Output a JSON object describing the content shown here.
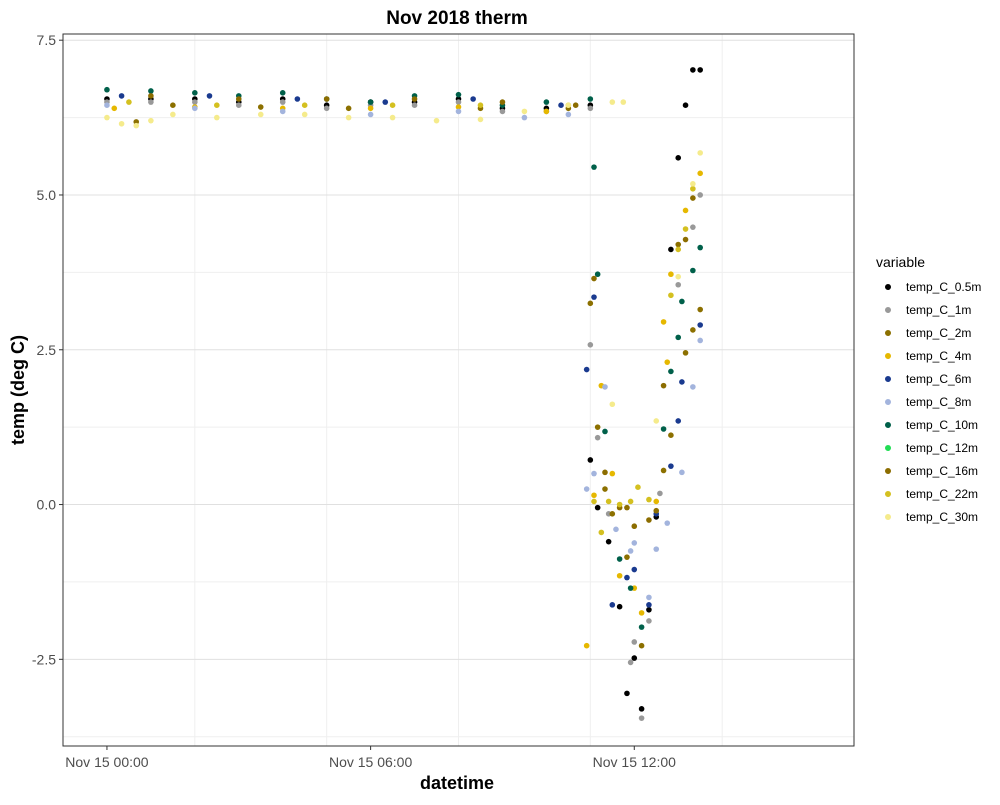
{
  "chart_data": {
    "type": "scatter",
    "title": "Nov 2018 therm",
    "xlabel": "datetime",
    "ylabel": "temp (deg C)",
    "legend_title": "variable",
    "legend_position": "right",
    "grid": true,
    "x_unit": "datetime",
    "xlim": [
      "2018-11-14 23:00",
      "2018-11-15 17:00"
    ],
    "ylim": [
      -3.9,
      7.6
    ],
    "x_ticks": [
      {
        "t": "2018-11-15 00:00",
        "label": "Nov 15 00:00"
      },
      {
        "t": "2018-11-15 06:00",
        "label": "Nov 15 06:00"
      },
      {
        "t": "2018-11-15 12:00",
        "label": "Nov 15 12:00"
      }
    ],
    "y_ticks": [
      {
        "v": -2.5,
        "label": "-2.5"
      },
      {
        "v": 0.0,
        "label": "0.0"
      },
      {
        "v": 2.5,
        "label": "2.5"
      },
      {
        "v": 5.0,
        "label": "5.0"
      },
      {
        "v": 7.5,
        "label": "7.5"
      }
    ],
    "series": [
      {
        "name": "temp_C_0.5m",
        "color": "#000000",
        "points": [
          [
            "2018-11-15 00:00",
            6.55
          ],
          [
            "2018-11-15 01:00",
            6.55
          ],
          [
            "2018-11-15 02:00",
            6.55
          ],
          [
            "2018-11-15 03:00",
            6.5
          ],
          [
            "2018-11-15 04:00",
            6.55
          ],
          [
            "2018-11-15 05:00",
            6.45
          ],
          [
            "2018-11-15 06:00",
            6.5
          ],
          [
            "2018-11-15 07:00",
            6.5
          ],
          [
            "2018-11-15 08:00",
            6.55
          ],
          [
            "2018-11-15 09:00",
            6.4
          ],
          [
            "2018-11-15 10:00",
            6.4
          ],
          [
            "2018-11-15 11:00",
            6.45
          ],
          [
            "2018-11-15 11:00",
            0.72
          ],
          [
            "2018-11-15 11:10",
            -0.05
          ],
          [
            "2018-11-15 11:25",
            -0.6
          ],
          [
            "2018-11-15 11:40",
            -1.65
          ],
          [
            "2018-11-15 11:50",
            -3.05
          ],
          [
            "2018-11-15 12:00",
            -2.48
          ],
          [
            "2018-11-15 12:10",
            -3.3
          ],
          [
            "2018-11-15 12:20",
            -1.7
          ],
          [
            "2018-11-15 12:30",
            -0.2
          ],
          [
            "2018-11-15 12:50",
            4.12
          ],
          [
            "2018-11-15 13:00",
            5.6
          ],
          [
            "2018-11-15 13:10",
            6.45
          ],
          [
            "2018-11-15 13:20",
            7.02
          ],
          [
            "2018-11-15 13:30",
            7.02
          ]
        ]
      },
      {
        "name": "temp_C_1m",
        "color": "#999999",
        "points": [
          [
            "2018-11-15 00:00",
            6.5
          ],
          [
            "2018-11-15 01:00",
            6.5
          ],
          [
            "2018-11-15 02:00",
            6.5
          ],
          [
            "2018-11-15 03:00",
            6.45
          ],
          [
            "2018-11-15 04:00",
            6.5
          ],
          [
            "2018-11-15 05:00",
            6.4
          ],
          [
            "2018-11-15 06:00",
            6.45
          ],
          [
            "2018-11-15 07:00",
            6.45
          ],
          [
            "2018-11-15 08:00",
            6.5
          ],
          [
            "2018-11-15 09:00",
            6.35
          ],
          [
            "2018-11-15 10:00",
            6.35
          ],
          [
            "2018-11-15 11:00",
            6.4
          ],
          [
            "2018-11-15 11:00",
            2.58
          ],
          [
            "2018-11-15 11:10",
            1.08
          ],
          [
            "2018-11-15 11:25",
            -0.15
          ],
          [
            "2018-11-15 11:55",
            -2.55
          ],
          [
            "2018-11-15 12:00",
            -2.22
          ],
          [
            "2018-11-15 12:10",
            -3.45
          ],
          [
            "2018-11-15 12:20",
            -1.88
          ],
          [
            "2018-11-15 12:35",
            0.18
          ],
          [
            "2018-11-15 13:00",
            3.55
          ],
          [
            "2018-11-15 13:20",
            4.48
          ],
          [
            "2018-11-15 13:30",
            5.0
          ]
        ]
      },
      {
        "name": "temp_C_2m",
        "color": "#8c7000",
        "points": [
          [
            "2018-11-15 00:40",
            6.18
          ],
          [
            "2018-11-15 01:30",
            6.45
          ],
          [
            "2018-11-15 03:30",
            6.42
          ],
          [
            "2018-11-15 05:30",
            6.4
          ],
          [
            "2018-11-15 08:30",
            6.4
          ],
          [
            "2018-11-15 10:30",
            6.4
          ],
          [
            "2018-11-15 11:00",
            3.25
          ],
          [
            "2018-11-15 11:10",
            1.25
          ],
          [
            "2018-11-15 11:20",
            0.25
          ],
          [
            "2018-11-15 11:30",
            -0.15
          ],
          [
            "2018-11-15 11:50",
            -0.85
          ],
          [
            "2018-11-15 12:10",
            -2.28
          ],
          [
            "2018-11-15 12:40",
            0.55
          ],
          [
            "2018-11-15 12:50",
            1.12
          ],
          [
            "2018-11-15 13:00",
            4.2
          ],
          [
            "2018-11-15 13:10",
            2.45
          ],
          [
            "2018-11-15 13:20",
            2.82
          ],
          [
            "2018-11-15 13:30",
            3.15
          ]
        ]
      },
      {
        "name": "temp_C_4m",
        "color": "#e6b800",
        "points": [
          [
            "2018-11-15 00:10",
            6.4
          ],
          [
            "2018-11-15 02:00",
            6.42
          ],
          [
            "2018-11-15 04:00",
            6.4
          ],
          [
            "2018-11-15 06:00",
            6.4
          ],
          [
            "2018-11-15 08:00",
            6.42
          ],
          [
            "2018-11-15 10:00",
            6.35
          ],
          [
            "2018-11-15 10:55",
            -2.28
          ],
          [
            "2018-11-15 11:05",
            0.15
          ],
          [
            "2018-11-15 11:15",
            1.92
          ],
          [
            "2018-11-15 11:30",
            0.5
          ],
          [
            "2018-11-15 11:40",
            -1.15
          ],
          [
            "2018-11-15 12:00",
            -1.35
          ],
          [
            "2018-11-15 12:10",
            -1.75
          ],
          [
            "2018-11-15 12:30",
            0.05
          ],
          [
            "2018-11-15 12:40",
            2.95
          ],
          [
            "2018-11-15 12:45",
            2.3
          ],
          [
            "2018-11-15 12:50",
            3.72
          ],
          [
            "2018-11-15 13:10",
            4.75
          ],
          [
            "2018-11-15 13:30",
            5.35
          ]
        ]
      },
      {
        "name": "temp_C_6m",
        "color": "#1a3a8f",
        "points": [
          [
            "2018-11-15 00:20",
            6.6
          ],
          [
            "2018-11-15 02:20",
            6.6
          ],
          [
            "2018-11-15 04:20",
            6.55
          ],
          [
            "2018-11-15 06:20",
            6.5
          ],
          [
            "2018-11-15 08:20",
            6.55
          ],
          [
            "2018-11-15 10:20",
            6.45
          ],
          [
            "2018-11-15 10:55",
            2.18
          ],
          [
            "2018-11-15 11:05",
            3.35
          ],
          [
            "2018-11-15 11:30",
            -1.62
          ],
          [
            "2018-11-15 11:50",
            -1.18
          ],
          [
            "2018-11-15 12:00",
            -1.05
          ],
          [
            "2018-11-15 12:20",
            -1.62
          ],
          [
            "2018-11-15 12:30",
            -0.15
          ],
          [
            "2018-11-15 12:50",
            0.62
          ],
          [
            "2018-11-15 13:00",
            1.35
          ],
          [
            "2018-11-15 13:05",
            1.98
          ],
          [
            "2018-11-15 13:30",
            2.9
          ]
        ]
      },
      {
        "name": "temp_C_8m",
        "color": "#a3b4dd",
        "points": [
          [
            "2018-11-15 00:00",
            6.45
          ],
          [
            "2018-11-15 02:00",
            6.4
          ],
          [
            "2018-11-15 04:00",
            6.35
          ],
          [
            "2018-11-15 06:00",
            6.3
          ],
          [
            "2018-11-15 08:00",
            6.35
          ],
          [
            "2018-11-15 09:30",
            6.25
          ],
          [
            "2018-11-15 10:30",
            6.3
          ],
          [
            "2018-11-15 10:55",
            0.25
          ],
          [
            "2018-11-15 11:05",
            0.5
          ],
          [
            "2018-11-15 11:20",
            1.9
          ],
          [
            "2018-11-15 11:35",
            -0.4
          ],
          [
            "2018-11-15 11:55",
            -0.75
          ],
          [
            "2018-11-15 12:00",
            -0.62
          ],
          [
            "2018-11-15 12:20",
            -1.5
          ],
          [
            "2018-11-15 12:30",
            -0.72
          ],
          [
            "2018-11-15 12:45",
            -0.3
          ],
          [
            "2018-11-15 13:05",
            0.52
          ],
          [
            "2018-11-15 13:20",
            1.9
          ],
          [
            "2018-11-15 13:30",
            2.65
          ]
        ]
      },
      {
        "name": "temp_C_10m",
        "color": "#00604a",
        "points": [
          [
            "2018-11-15 00:00",
            6.7
          ],
          [
            "2018-11-15 01:00",
            6.68
          ],
          [
            "2018-11-15 02:00",
            6.65
          ],
          [
            "2018-11-15 03:00",
            6.6
          ],
          [
            "2018-11-15 04:00",
            6.65
          ],
          [
            "2018-11-15 05:00",
            6.55
          ],
          [
            "2018-11-15 06:00",
            6.5
          ],
          [
            "2018-11-15 07:00",
            6.6
          ],
          [
            "2018-11-15 08:00",
            6.62
          ],
          [
            "2018-11-15 09:00",
            6.45
          ],
          [
            "2018-11-15 10:00",
            6.5
          ],
          [
            "2018-11-15 11:00",
            6.55
          ],
          [
            "2018-11-15 11:05",
            5.45
          ],
          [
            "2018-11-15 11:10",
            3.72
          ],
          [
            "2018-11-15 11:20",
            1.18
          ],
          [
            "2018-11-15 11:40",
            -0.88
          ],
          [
            "2018-11-15 11:55",
            -1.35
          ],
          [
            "2018-11-15 12:10",
            -1.98
          ],
          [
            "2018-11-15 12:40",
            1.22
          ],
          [
            "2018-11-15 12:50",
            2.15
          ],
          [
            "2018-11-15 13:00",
            2.7
          ],
          [
            "2018-11-15 13:05",
            3.28
          ],
          [
            "2018-11-15 13:20",
            3.78
          ],
          [
            "2018-11-15 13:30",
            4.15
          ]
        ]
      },
      {
        "name": "temp_C_12m",
        "color": "#22dd55",
        "points": []
      },
      {
        "name": "temp_C_16m",
        "color": "#8c6d00",
        "points": [
          [
            "2018-11-15 01:00",
            6.6
          ],
          [
            "2018-11-15 03:00",
            6.55
          ],
          [
            "2018-11-15 05:00",
            6.55
          ],
          [
            "2018-11-15 07:00",
            6.55
          ],
          [
            "2018-11-15 09:00",
            6.5
          ],
          [
            "2018-11-15 10:40",
            6.45
          ],
          [
            "2018-11-15 11:05",
            3.65
          ],
          [
            "2018-11-15 11:20",
            0.52
          ],
          [
            "2018-11-15 11:40",
            -0.05
          ],
          [
            "2018-11-15 11:50",
            -0.05
          ],
          [
            "2018-11-15 12:00",
            -0.35
          ],
          [
            "2018-11-15 12:20",
            -0.25
          ],
          [
            "2018-11-15 12:30",
            -0.1
          ],
          [
            "2018-11-15 12:40",
            1.92
          ],
          [
            "2018-11-15 13:10",
            4.28
          ],
          [
            "2018-11-15 13:20",
            4.95
          ]
        ]
      },
      {
        "name": "temp_C_22m",
        "color": "#d4c020",
        "points": [
          [
            "2018-11-15 00:30",
            6.5
          ],
          [
            "2018-11-15 02:30",
            6.45
          ],
          [
            "2018-11-15 04:30",
            6.45
          ],
          [
            "2018-11-15 06:30",
            6.45
          ],
          [
            "2018-11-15 08:30",
            6.45
          ],
          [
            "2018-11-15 10:30",
            6.45
          ],
          [
            "2018-11-15 11:05",
            0.05
          ],
          [
            "2018-11-15 11:15",
            -0.45
          ],
          [
            "2018-11-15 11:25",
            0.05
          ],
          [
            "2018-11-15 11:40",
            0.0
          ],
          [
            "2018-11-15 11:55",
            0.05
          ],
          [
            "2018-11-15 12:05",
            0.28
          ],
          [
            "2018-11-15 12:20",
            0.08
          ],
          [
            "2018-11-15 12:50",
            3.38
          ],
          [
            "2018-11-15 13:00",
            4.12
          ],
          [
            "2018-11-15 13:10",
            4.45
          ],
          [
            "2018-11-15 13:20",
            5.1
          ]
        ]
      },
      {
        "name": "temp_C_30m",
        "color": "#f5eb8c",
        "points": [
          [
            "2018-11-15 00:00",
            6.25
          ],
          [
            "2018-11-15 00:20",
            6.15
          ],
          [
            "2018-11-15 00:40",
            6.12
          ],
          [
            "2018-11-15 01:00",
            6.2
          ],
          [
            "2018-11-15 01:30",
            6.3
          ],
          [
            "2018-11-15 02:30",
            6.25
          ],
          [
            "2018-11-15 03:30",
            6.3
          ],
          [
            "2018-11-15 04:30",
            6.3
          ],
          [
            "2018-11-15 05:30",
            6.25
          ],
          [
            "2018-11-15 06:30",
            6.25
          ],
          [
            "2018-11-15 07:30",
            6.2
          ],
          [
            "2018-11-15 08:30",
            6.22
          ],
          [
            "2018-11-15 09:30",
            6.35
          ],
          [
            "2018-11-15 10:30",
            6.45
          ],
          [
            "2018-11-15 11:30",
            6.5
          ],
          [
            "2018-11-15 11:45",
            6.5
          ],
          [
            "2018-11-15 11:30",
            1.62
          ],
          [
            "2018-11-15 12:30",
            1.35
          ],
          [
            "2018-11-15 13:00",
            3.68
          ],
          [
            "2018-11-15 13:20",
            5.18
          ],
          [
            "2018-11-15 13:30",
            5.68
          ]
        ]
      }
    ]
  }
}
